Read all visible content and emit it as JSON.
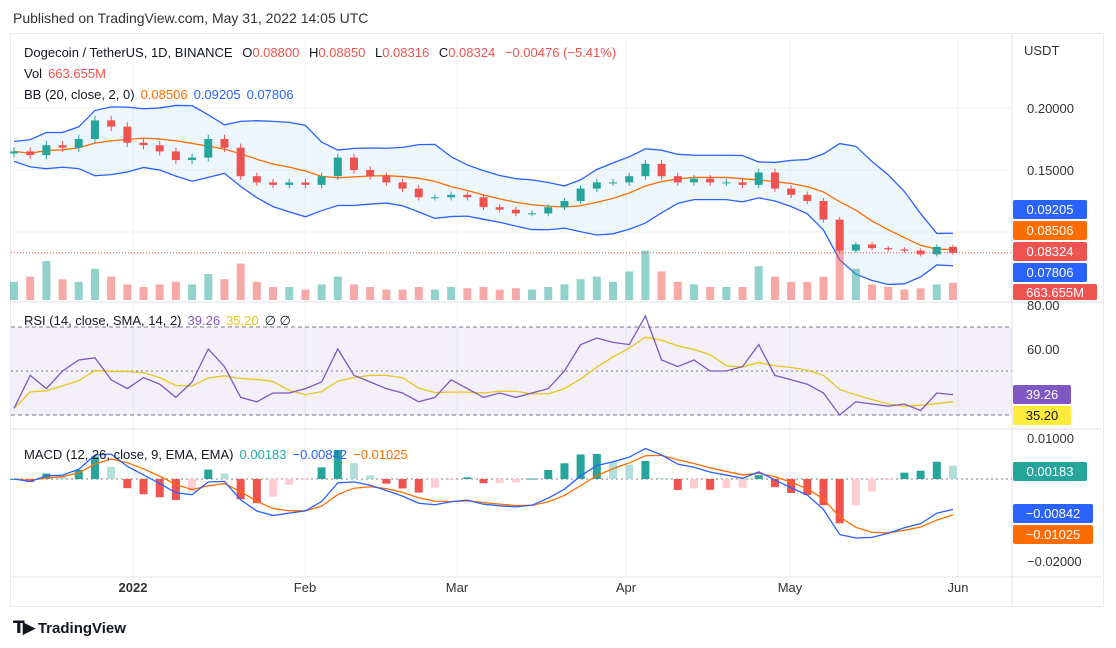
{
  "published": "Published on TradingView.com, May 31, 2022 14:05 UTC",
  "legend": {
    "symbol": "Dogecoin / TetherUS, 1D, BINANCE",
    "o_label": "O",
    "o": "0.08800",
    "h_label": "H",
    "h": "0.08850",
    "l_label": "L",
    "l": "0.08316",
    "c_label": "C",
    "c": "0.08324",
    "change": "−0.00476 (−5.41%)",
    "vol_label": "Vol",
    "vol": "663.655M",
    "bb_label": "BB (20, close, 2, 0)",
    "bb_basis": "0.08506",
    "bb_upper": "0.09205",
    "bb_lower": "0.07806",
    "rsi_label": "RSI (14, close, SMA, 14, 2)",
    "rsi": "39.26",
    "rsi_ma": "35.20",
    "rsi_extra": "∅  ∅",
    "macd_label": "MACD (12, 26, close, 9, EMA, EMA)",
    "macd_hist": "0.00183",
    "macd": "−0.00842",
    "macd_signal": "−0.01025"
  },
  "axis": {
    "currency": "USDT",
    "price_ticks": [
      "0.20000",
      "0.15000"
    ],
    "rsi_ticks": [
      "80.00",
      "60.00"
    ],
    "macd_ticks": [
      "0.01000",
      "−0.02000"
    ],
    "time_ticks": [
      "2022",
      "Feb",
      "Mar",
      "Apr",
      "May",
      "Jun"
    ],
    "tags": {
      "upper": "0.09205",
      "basis": "0.08506",
      "close": "0.08324",
      "lower": "0.07806",
      "vol": "663.655M",
      "rsi": "39.26",
      "rsi_ma": "35.20",
      "hist": "0.00183",
      "macd": "−0.00842",
      "signal": "−0.01025"
    }
  },
  "logo": "TradingView",
  "colors": {
    "up": "#26a69a",
    "down": "#ef5350",
    "bb_basis": "#ff6d00",
    "bb_band": "#2962ff",
    "rsi": "#7e57c2",
    "rsi_ma": "#e6c71d"
  },
  "chart_data": {
    "type": "candlestick",
    "x_range": [
      "2021-12-10",
      "2022-05-31"
    ],
    "sampling": "approx every 3 days",
    "close": [
      0.165,
      0.162,
      0.17,
      0.168,
      0.175,
      0.19,
      0.185,
      0.172,
      0.17,
      0.165,
      0.158,
      0.16,
      0.175,
      0.168,
      0.145,
      0.14,
      0.138,
      0.14,
      0.138,
      0.145,
      0.16,
      0.15,
      0.145,
      0.14,
      0.135,
      0.128,
      0.128,
      0.13,
      0.128,
      0.12,
      0.118,
      0.115,
      0.115,
      0.12,
      0.125,
      0.135,
      0.14,
      0.14,
      0.145,
      0.155,
      0.145,
      0.14,
      0.143,
      0.14,
      0.14,
      0.138,
      0.148,
      0.135,
      0.13,
      0.125,
      0.11,
      0.085,
      0.09,
      0.087,
      0.086,
      0.085,
      0.082,
      0.088,
      0.08324
    ],
    "volume_m": [
      700,
      900,
      1500,
      800,
      700,
      1200,
      900,
      600,
      500,
      600,
      700,
      600,
      1000,
      800,
      1400,
      700,
      500,
      500,
      400,
      600,
      900,
      600,
      500,
      400,
      400,
      500,
      400,
      500,
      450,
      500,
      400,
      450,
      400,
      500,
      600,
      800,
      900,
      700,
      1100,
      1900,
      1100,
      700,
      600,
      500,
      500,
      500,
      1300,
      900,
      700,
      700,
      900,
      2200,
      1200,
      600,
      500,
      400,
      450,
      600,
      664
    ],
    "rsi": [
      33,
      48,
      42,
      50,
      55,
      56,
      46,
      42,
      47,
      44,
      38,
      45,
      60,
      52,
      38,
      36,
      40,
      40,
      42,
      45,
      60,
      48,
      45,
      42,
      40,
      36,
      38,
      46,
      42,
      38,
      40,
      38,
      40,
      42,
      50,
      62,
      65,
      63,
      62,
      75,
      55,
      52,
      55,
      50,
      50,
      52,
      62,
      48,
      46,
      44,
      40,
      30,
      36,
      35,
      34,
      35,
      32,
      40,
      39.26
    ],
    "rsi_range": [
      20,
      80
    ],
    "price_range": [
      0.075,
      0.215
    ],
    "macd_range": [
      -0.022,
      0.011
    ]
  }
}
